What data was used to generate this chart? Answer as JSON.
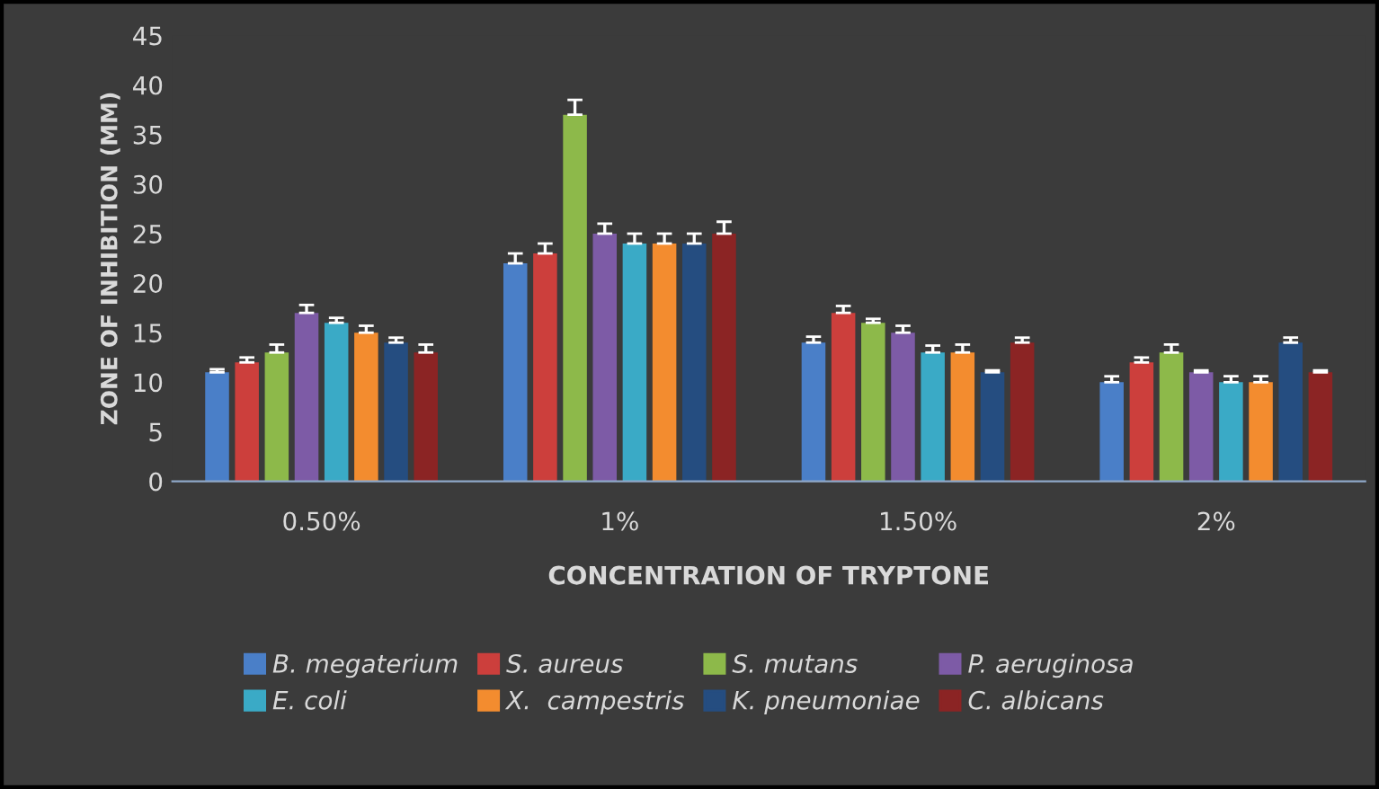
{
  "chart_data": {
    "type": "bar",
    "xlabel": "CONCENTRATION OF TRYPTONE",
    "ylabel": "ZONE OF INHIBITION (MM)",
    "categories": [
      "0.50%",
      "1%",
      "1.50%",
      "2%"
    ],
    "ylim": [
      0,
      45
    ],
    "yticks": [
      0,
      5,
      10,
      15,
      20,
      25,
      30,
      35,
      40,
      45
    ],
    "grid": false,
    "legend": "bottom",
    "series": [
      {
        "name": "B. megaterium",
        "color": "#4a7fc8",
        "values": [
          11,
          22,
          14,
          10
        ],
        "errors": [
          [
            11,
            11.3
          ],
          [
            22,
            23
          ],
          [
            14,
            14.6
          ],
          [
            10,
            10.6
          ]
        ]
      },
      {
        "name": "S. aureus",
        "color": "#cc3f3c",
        "values": [
          12,
          23,
          17,
          12
        ],
        "errors": [
          [
            12,
            12.5
          ],
          [
            23,
            24
          ],
          [
            17,
            17.7
          ],
          [
            12,
            12.5
          ]
        ]
      },
      {
        "name": "S. mutans",
        "color": "#8db94a",
        "values": [
          13,
          37,
          16,
          13
        ],
        "errors": [
          [
            13,
            13.8
          ],
          [
            37,
            38.5
          ],
          [
            16,
            16.4
          ],
          [
            13,
            13.8
          ]
        ]
      },
      {
        "name": "P. aeruginosa",
        "color": "#7d5ba6",
        "values": [
          17,
          25,
          15,
          11
        ],
        "errors": [
          [
            17,
            17.8
          ],
          [
            25,
            26
          ],
          [
            15,
            15.7
          ],
          [
            11,
            11.2
          ]
        ]
      },
      {
        "name": "E. coli",
        "color": "#3aaac6",
        "values": [
          16,
          24,
          13,
          10
        ],
        "errors": [
          [
            16,
            16.5
          ],
          [
            24,
            25
          ],
          [
            13,
            13.7
          ],
          [
            10,
            10.6
          ]
        ]
      },
      {
        "name": "X.  campestris",
        "color": "#f38c2f",
        "values": [
          15,
          24,
          13,
          10
        ],
        "errors": [
          [
            15,
            15.7
          ],
          [
            24,
            25
          ],
          [
            13,
            13.8
          ],
          [
            10,
            10.6
          ]
        ]
      },
      {
        "name": "K. pneumoniae",
        "color": "#254d80",
        "values": [
          14,
          24,
          11,
          14
        ],
        "errors": [
          [
            14,
            14.5
          ],
          [
            24,
            25
          ],
          [
            11,
            11.2
          ],
          [
            14,
            14.5
          ]
        ]
      },
      {
        "name": "C. albicans",
        "color": "#8b2424",
        "values": [
          13,
          25,
          14,
          11
        ],
        "errors": [
          [
            13,
            13.8
          ],
          [
            25,
            26.2
          ],
          [
            14,
            14.5
          ],
          [
            11,
            11.2
          ]
        ]
      }
    ]
  }
}
